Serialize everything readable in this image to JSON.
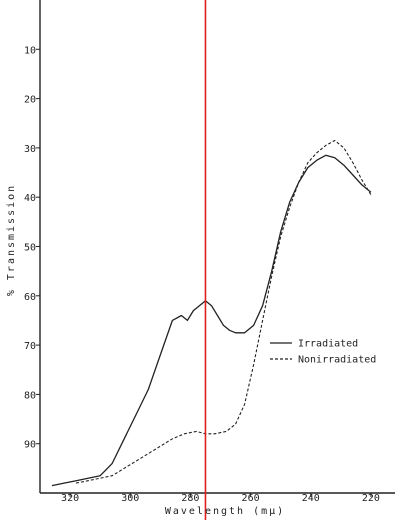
{
  "chart_data": {
    "type": "line",
    "title": "",
    "xlabel": "Wavelength (mμ)",
    "ylabel": "% Transmission",
    "xlim": [
      330,
      212
    ],
    "ylim": [
      0,
      100
    ],
    "y_inverted": true,
    "x_reversed": true,
    "x_ticks": [
      {
        "value": 320,
        "label": "320"
      },
      {
        "value": 300,
        "label": "300"
      },
      {
        "value": 280,
        "label": "280"
      },
      {
        "value": 260,
        "label": "260"
      },
      {
        "value": 240,
        "label": "240"
      },
      {
        "value": 220,
        "label": "220"
      }
    ],
    "y_ticks": [
      {
        "value": 10,
        "label": "10"
      },
      {
        "value": 20,
        "label": "20"
      },
      {
        "value": 30,
        "label": "30"
      },
      {
        "value": 40,
        "label": "40"
      },
      {
        "value": 50,
        "label": "50"
      },
      {
        "value": 60,
        "label": "60"
      },
      {
        "value": 70,
        "label": "70"
      },
      {
        "value": 80,
        "label": "80"
      },
      {
        "value": 90,
        "label": "90"
      }
    ],
    "marker_line": {
      "x": 275,
      "color": "#e02020"
    },
    "legend": {
      "placement": "right",
      "entries": [
        {
          "name": "Irradiated",
          "style": "solid"
        },
        {
          "name": "Nonirradiated",
          "style": "dashed"
        }
      ]
    },
    "series": [
      {
        "name": "Irradiated",
        "style": "solid",
        "color": "#222222",
        "x": [
          326,
          322,
          318,
          314,
          310,
          306,
          302,
          298,
          294,
          290,
          286,
          283,
          281,
          279,
          277,
          275,
          273,
          271,
          269,
          267,
          265,
          262,
          259,
          256,
          253,
          250,
          247,
          244,
          241,
          238,
          235,
          232,
          229,
          226,
          223,
          220
        ],
        "y": [
          98.5,
          98,
          97.5,
          97,
          96.5,
          94,
          89,
          84,
          79,
          72,
          65,
          64,
          65,
          63,
          62,
          61,
          62,
          64,
          66,
          67,
          67.5,
          67.5,
          66,
          62,
          55,
          47,
          41,
          37,
          34,
          32.5,
          31.5,
          32,
          33.5,
          35.5,
          37.5,
          39
        ]
      },
      {
        "name": "Nonirradiated",
        "style": "dashed",
        "color": "#222222",
        "x": [
          318,
          314,
          310,
          306,
          302,
          298,
          294,
          290,
          286,
          282,
          278,
          275,
          272,
          268,
          265,
          262,
          259,
          256,
          253,
          250,
          247,
          244,
          241,
          238,
          235,
          232,
          229,
          226,
          223,
          220
        ],
        "y": [
          98,
          97.5,
          97,
          96.5,
          95,
          93.5,
          92,
          90.5,
          89,
          88,
          87.5,
          88,
          88,
          87.5,
          86,
          82,
          74,
          65,
          56,
          48,
          42,
          37,
          33,
          31,
          29.5,
          28.5,
          30,
          33,
          36.5,
          39.5
        ]
      }
    ]
  }
}
